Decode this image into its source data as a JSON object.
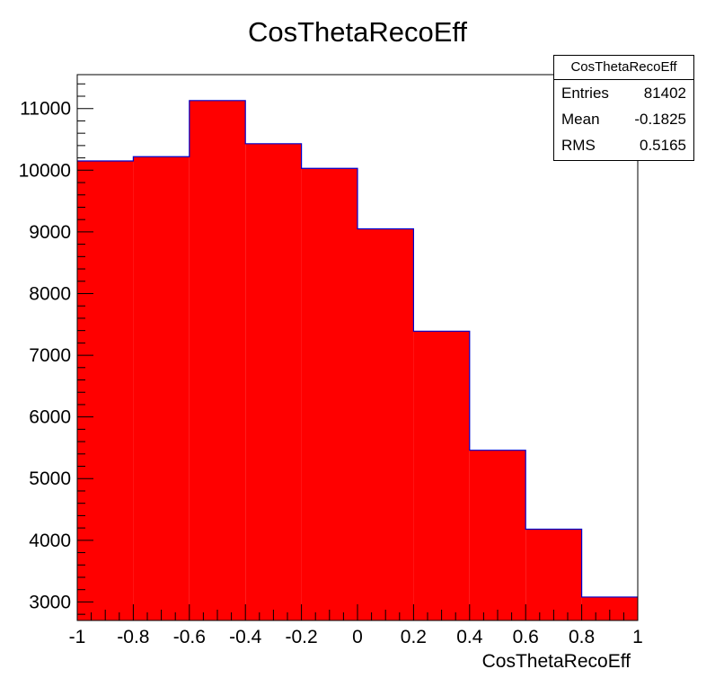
{
  "chart_data": {
    "type": "bar",
    "title": "CosThetaRecoEff",
    "xlabel": "CosThetaRecoEff",
    "ylabel": "",
    "bin_edges": [
      -1,
      -0.8,
      -0.6,
      -0.4,
      -0.2,
      0,
      0.2,
      0.4,
      0.6,
      0.8,
      1
    ],
    "values": [
      10150,
      10220,
      11130,
      10430,
      10030,
      9050,
      7390,
      5460,
      4180,
      3080
    ],
    "xlim": [
      -1,
      1
    ],
    "ylim": [
      2700,
      11550
    ],
    "x_ticks": [
      "-1",
      "-0.8",
      "-0.6",
      "-0.4",
      "-0.2",
      "0",
      "0.2",
      "0.4",
      "0.6",
      "0.8",
      "1"
    ],
    "x_tick_values": [
      -1,
      -0.8,
      -0.6,
      -0.4,
      -0.2,
      0,
      0.2,
      0.4,
      0.6,
      0.8,
      1
    ],
    "y_ticks": [
      "3000",
      "4000",
      "5000",
      "6000",
      "7000",
      "8000",
      "9000",
      "10000",
      "11000"
    ],
    "y_tick_values": [
      3000,
      4000,
      5000,
      6000,
      7000,
      8000,
      9000,
      10000,
      11000
    ],
    "fill_color": "#ff0000",
    "line_color": "#0000cc",
    "grid": false
  },
  "stats": {
    "title": "CosThetaRecoEff",
    "rows": [
      {
        "label": "Entries",
        "value": "81402"
      },
      {
        "label": "Mean",
        "value": "-0.1825"
      },
      {
        "label": "RMS",
        "value": "0.5165"
      }
    ]
  }
}
